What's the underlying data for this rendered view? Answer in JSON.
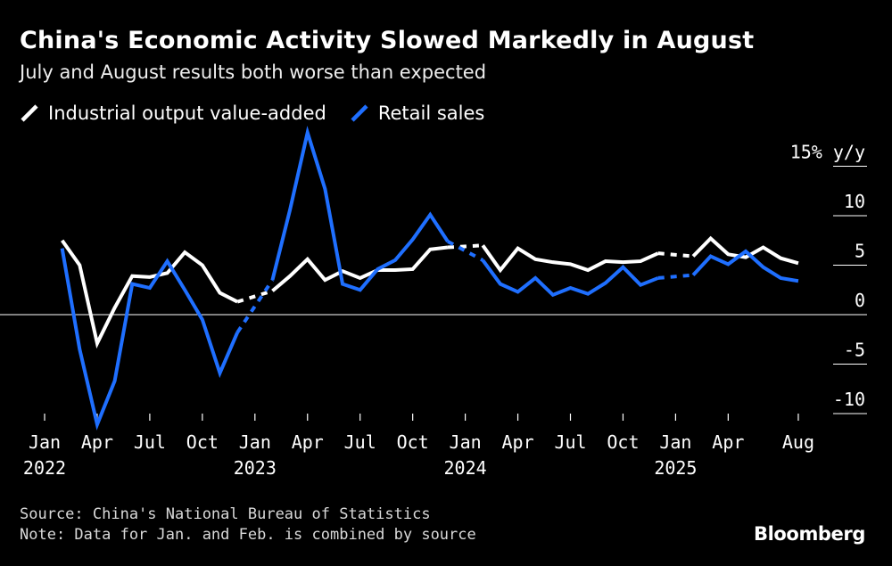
{
  "header": {
    "title": "China's Economic Activity Slowed Markedly in August",
    "subtitle": "July and August results both worse than expected"
  },
  "footer": {
    "source": "Source: China's National Bureau of Statistics",
    "note": "Note: Data for Jan. and Feb. is combined by source",
    "brand": "Bloomberg"
  },
  "chart_data": {
    "type": "line",
    "unit_label": "15% y/y",
    "y_ticks": [
      15,
      10,
      5,
      0,
      -5,
      -10
    ],
    "y_tick_labels": [
      "15% y/y",
      "10",
      "5",
      "0",
      "-5",
      "-10"
    ],
    "ylim": [
      -11,
      16
    ],
    "x_tick_labels": [
      [
        "Jan",
        "2022"
      ],
      [
        "Apr",
        ""
      ],
      [
        "Jul",
        ""
      ],
      [
        "Oct",
        ""
      ],
      [
        "Jan",
        "2023"
      ],
      [
        "Apr",
        ""
      ],
      [
        "Jul",
        ""
      ],
      [
        "Oct",
        ""
      ],
      [
        "Jan",
        "2024"
      ],
      [
        "Apr",
        ""
      ],
      [
        "Jul",
        ""
      ],
      [
        "Oct",
        ""
      ],
      [
        "Jan",
        "2025"
      ],
      [
        "Apr",
        ""
      ],
      [
        "Aug",
        ""
      ]
    ],
    "x_tick_months": [
      "2022-01",
      "2022-04",
      "2022-07",
      "2022-10",
      "2023-01",
      "2023-04",
      "2023-07",
      "2023-10",
      "2024-01",
      "2024-04",
      "2024-07",
      "2024-10",
      "2025-01",
      "2025-04",
      "2025-08"
    ],
    "months": [
      "2022-02",
      "2022-03",
      "2022-04",
      "2022-05",
      "2022-06",
      "2022-07",
      "2022-08",
      "2022-09",
      "2022-10",
      "2022-11",
      "2022-12",
      "2023-01",
      "2023-02",
      "2023-03",
      "2023-04",
      "2023-05",
      "2023-06",
      "2023-07",
      "2023-08",
      "2023-09",
      "2023-10",
      "2023-11",
      "2023-12",
      "2024-01",
      "2024-02",
      "2024-03",
      "2024-04",
      "2024-05",
      "2024-06",
      "2024-07",
      "2024-08",
      "2024-09",
      "2024-10",
      "2024-11",
      "2024-12",
      "2025-01",
      "2025-02",
      "2025-03",
      "2025-04",
      "2025-05",
      "2025-06",
      "2025-07",
      "2025-08"
    ],
    "series": [
      {
        "name": "Industrial output value-added",
        "color": "#ffffff",
        "values": [
          7.5,
          5.0,
          -2.9,
          0.7,
          3.9,
          3.8,
          4.2,
          6.3,
          5.0,
          2.2,
          1.3,
          null,
          2.4,
          3.9,
          5.6,
          3.5,
          4.4,
          3.7,
          4.5,
          4.5,
          4.6,
          6.6,
          6.8,
          null,
          7.0,
          4.5,
          6.7,
          5.6,
          5.3,
          5.1,
          4.5,
          5.4,
          5.3,
          5.4,
          6.2,
          null,
          5.9,
          7.7,
          6.1,
          5.8,
          6.8,
          5.7,
          5.2
        ],
        "gaps": [
          11,
          23,
          35
        ]
      },
      {
        "name": "Retail sales",
        "color": "#1f6fff",
        "values": [
          6.7,
          -3.5,
          -11.1,
          -6.7,
          3.1,
          2.7,
          5.4,
          2.5,
          -0.5,
          -5.9,
          -1.8,
          null,
          3.5,
          10.6,
          18.4,
          12.7,
          3.1,
          2.5,
          4.6,
          5.5,
          7.6,
          10.1,
          7.4,
          null,
          5.5,
          3.1,
          2.3,
          3.7,
          2.0,
          2.7,
          2.1,
          3.2,
          4.8,
          3.0,
          3.7,
          null,
          4.0,
          5.9,
          5.1,
          6.4,
          4.8,
          3.7,
          3.4
        ],
        "gaps": [
          11,
          23,
          35
        ]
      }
    ]
  }
}
